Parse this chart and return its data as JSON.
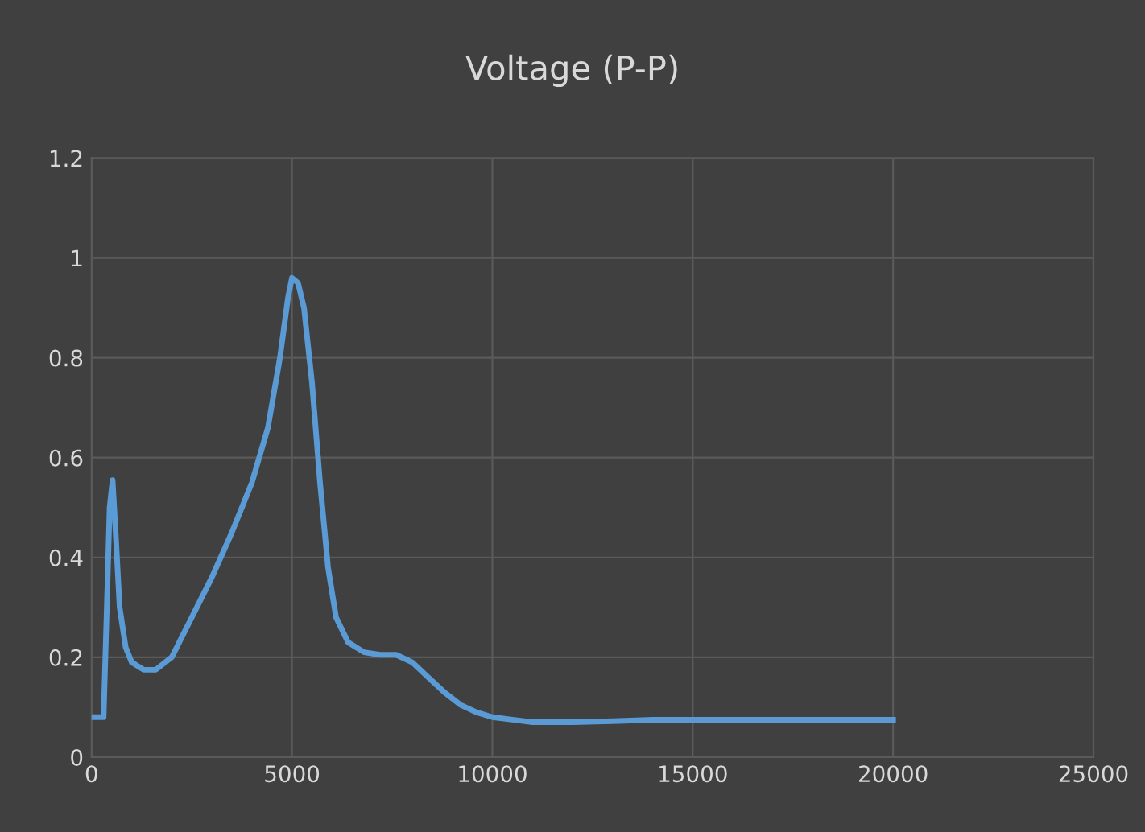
{
  "chart_data": {
    "type": "line",
    "title": "Voltage (P-P)",
    "series": [
      {
        "color": "#5b9bd5",
        "x": [
          0,
          300,
          380,
          450,
          524,
          600,
          700,
          850,
          1000,
          1300,
          1600,
          2000,
          2500,
          3000,
          3500,
          4000,
          4400,
          4700,
          4900,
          5000,
          5150,
          5300,
          5500,
          5700,
          5900,
          6100,
          6400,
          6800,
          7200,
          7600,
          8000,
          8400,
          8800,
          9200,
          9600,
          10000,
          10500,
          11000,
          12000,
          13000,
          14000,
          15000,
          17000,
          20000
        ],
        "values": [
          0.08,
          0.08,
          0.3,
          0.5,
          0.555,
          0.45,
          0.3,
          0.22,
          0.19,
          0.175,
          0.175,
          0.2,
          0.28,
          0.36,
          0.45,
          0.55,
          0.66,
          0.8,
          0.92,
          0.96,
          0.95,
          0.9,
          0.75,
          0.55,
          0.38,
          0.28,
          0.23,
          0.21,
          0.205,
          0.205,
          0.19,
          0.16,
          0.13,
          0.105,
          0.09,
          0.08,
          0.075,
          0.07,
          0.07,
          0.072,
          0.075,
          0.075,
          0.075,
          0.075
        ]
      }
    ],
    "xlim": [
      0,
      25000
    ],
    "xticks": [
      0,
      5000,
      10000,
      15000,
      20000,
      25000
    ],
    "ylim": [
      0,
      1.2
    ],
    "yticks": [
      0,
      0.2,
      0.4,
      0.6,
      0.8,
      1,
      1.2
    ],
    "grid": true,
    "line_style": "solid",
    "marker": "none"
  }
}
